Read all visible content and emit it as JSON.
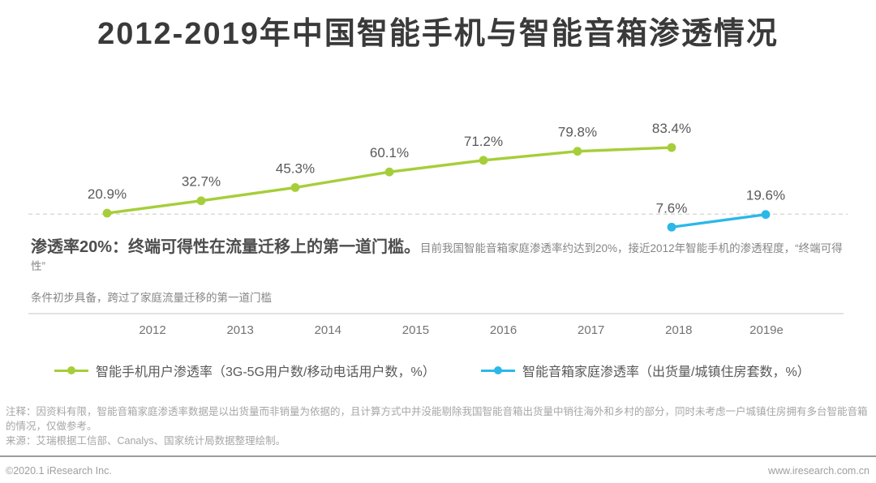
{
  "title": "2012-2019年中国智能手机与智能音箱渗透情况",
  "chart_data": {
    "type": "line",
    "categories": [
      "2012",
      "2013",
      "2014",
      "2015",
      "2016",
      "2017",
      "2018",
      "2019e"
    ],
    "series": [
      {
        "name": "智能手机用户渗透率（3G-5G用户数/移动电话用户数，%）",
        "color": "#a6ce39",
        "start_index": 0,
        "values": [
          20.9,
          32.7,
          45.3,
          60.1,
          71.2,
          79.8,
          83.4
        ]
      },
      {
        "name": "智能音箱家庭渗透率（出货量/城镇住房套数，%）",
        "color": "#2bb8e8",
        "start_index": 6,
        "values": [
          7.6,
          19.6
        ]
      }
    ],
    "value_suffix": "%",
    "reference_line": {
      "value": 20,
      "style": "dashed"
    },
    "grid": false,
    "legend_position": "bottom",
    "xlabel": "",
    "ylabel": ""
  },
  "annotation": {
    "headline": "渗透率20%：终端可得性在流量迁移上的第一道门槛。",
    "body": "目前我国智能音箱家庭渗透率约达到20%，接近2012年智能手机的渗透程度，“终端可得性”",
    "body_line2": "条件初步具备，跨过了家庭流量迁移的第一道门槛"
  },
  "notes": {
    "note": "注释：因资料有限，智能音箱家庭渗透率数据是以出货量而非销量为依据的，且计算方式中并没能剔除我国智能音箱出货量中销往海外和乡村的部分，同时未考虑一户城镇住房拥有多台智能音箱的情况，仅做参考。",
    "source": "来源：艾瑞根据工信部、Canalys、国家统计局数据整理绘制。"
  },
  "footer": {
    "copyright": "©2020.1 iResearch Inc.",
    "website": "www.iresearch.com.cn"
  },
  "colors": {
    "smartphone_series": "#a6ce39",
    "speaker_series": "#2bb8e8",
    "value_label": "#595959",
    "year_label": "#737373",
    "axis_line": "#c6c6c6",
    "reference_line": "#cfcfcf"
  }
}
